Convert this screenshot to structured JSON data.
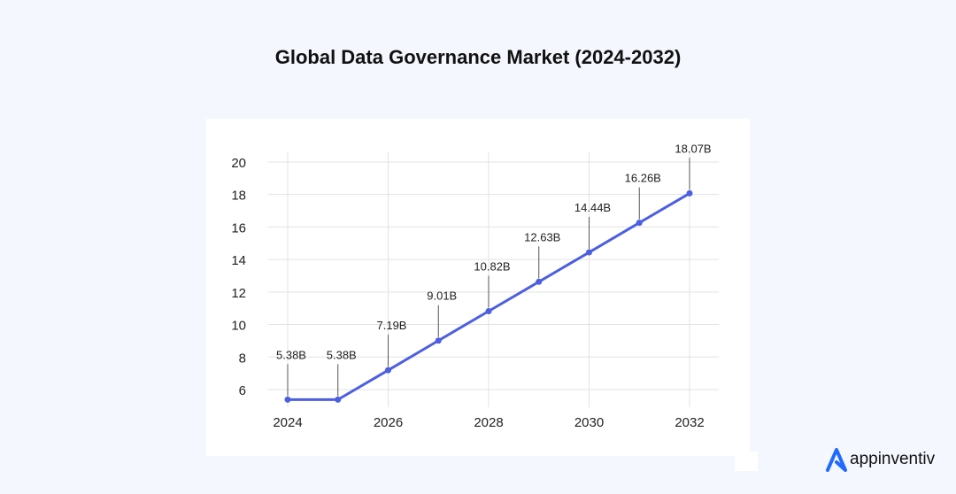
{
  "chart_data": {
    "type": "line",
    "title": "Global Data Governance Market (2024-2032)",
    "x": [
      2024,
      2025,
      2026,
      2027,
      2028,
      2029,
      2030,
      2031,
      2032
    ],
    "values": [
      5.38,
      5.38,
      7.19,
      9.01,
      10.82,
      12.63,
      14.44,
      16.26,
      18.07
    ],
    "data_labels": [
      "5.38B",
      "5.38B",
      "7.19B",
      "9.01B",
      "10.82B",
      "12.63B",
      "14.44B",
      "16.26B",
      "18.07B"
    ],
    "xticks": [
      "2024",
      "2026",
      "2028",
      "2030",
      "2032"
    ],
    "yticks": [
      "6",
      "8",
      "10",
      "12",
      "14",
      "16",
      "18",
      "20"
    ],
    "ylim": [
      6,
      20
    ],
    "xlabel": "",
    "ylabel": "",
    "grid": true,
    "line_color": "#4b5fe0"
  },
  "brand": {
    "name": "appinventiv",
    "color": "#1f6bff"
  }
}
